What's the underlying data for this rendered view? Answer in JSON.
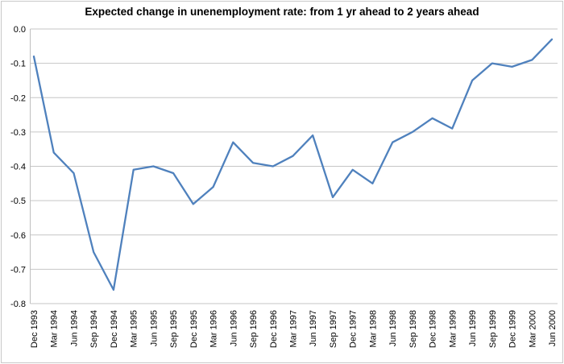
{
  "chart_data": {
    "type": "line",
    "title": "Expected change in unenemployment rate: from 1 yr ahead to 2 years ahead",
    "xlabel": "",
    "ylabel": "",
    "categories": [
      "Dec 1993",
      "Mar 1994",
      "Jun 1994",
      "Sep 1994",
      "Dec 1994",
      "Mar 1995",
      "Jun 1995",
      "Sep 1995",
      "Dec 1995",
      "Mar 1996",
      "Jun 1996",
      "Sep 1996",
      "Dec 1996",
      "Mar 1997",
      "Jun 1997",
      "Sep 1997",
      "Dec 1997",
      "Mar 1998",
      "Jun 1998",
      "Sep 1998",
      "Dec 1998",
      "Mar 1999",
      "Jun 1999",
      "Sep 1999",
      "Dec 1999",
      "Mar 2000",
      "Jun 2000"
    ],
    "series": [
      {
        "name": "Expected change in unemployment rate",
        "values": [
          -0.08,
          -0.36,
          -0.42,
          -0.65,
          -0.76,
          -0.41,
          -0.4,
          -0.42,
          -0.51,
          -0.46,
          -0.33,
          -0.39,
          -0.4,
          -0.37,
          -0.31,
          -0.49,
          -0.41,
          -0.45,
          -0.33,
          -0.3,
          -0.26,
          -0.29,
          -0.15,
          -0.1,
          -0.11,
          -0.09,
          -0.03
        ]
      }
    ],
    "ylim": [
      -0.8,
      0.0
    ],
    "ytick_labels": [
      "0.0",
      "-0.1",
      "-0.2",
      "-0.3",
      "-0.4",
      "-0.5",
      "-0.6",
      "-0.7",
      "-0.8"
    ],
    "ytick_values": [
      0.0,
      -0.1,
      -0.2,
      -0.3,
      -0.4,
      -0.5,
      -0.6,
      -0.7,
      -0.8
    ],
    "x_tick_rotation_deg": 90,
    "grid": true,
    "legend_position": "none",
    "colors": {
      "line": "#4F81BD",
      "gridline": "#c6c6c6",
      "axis_line": "#bfbfbf",
      "tick_text": "#000000",
      "frame_border": "#c9c9c9",
      "background": "#ffffff"
    }
  }
}
